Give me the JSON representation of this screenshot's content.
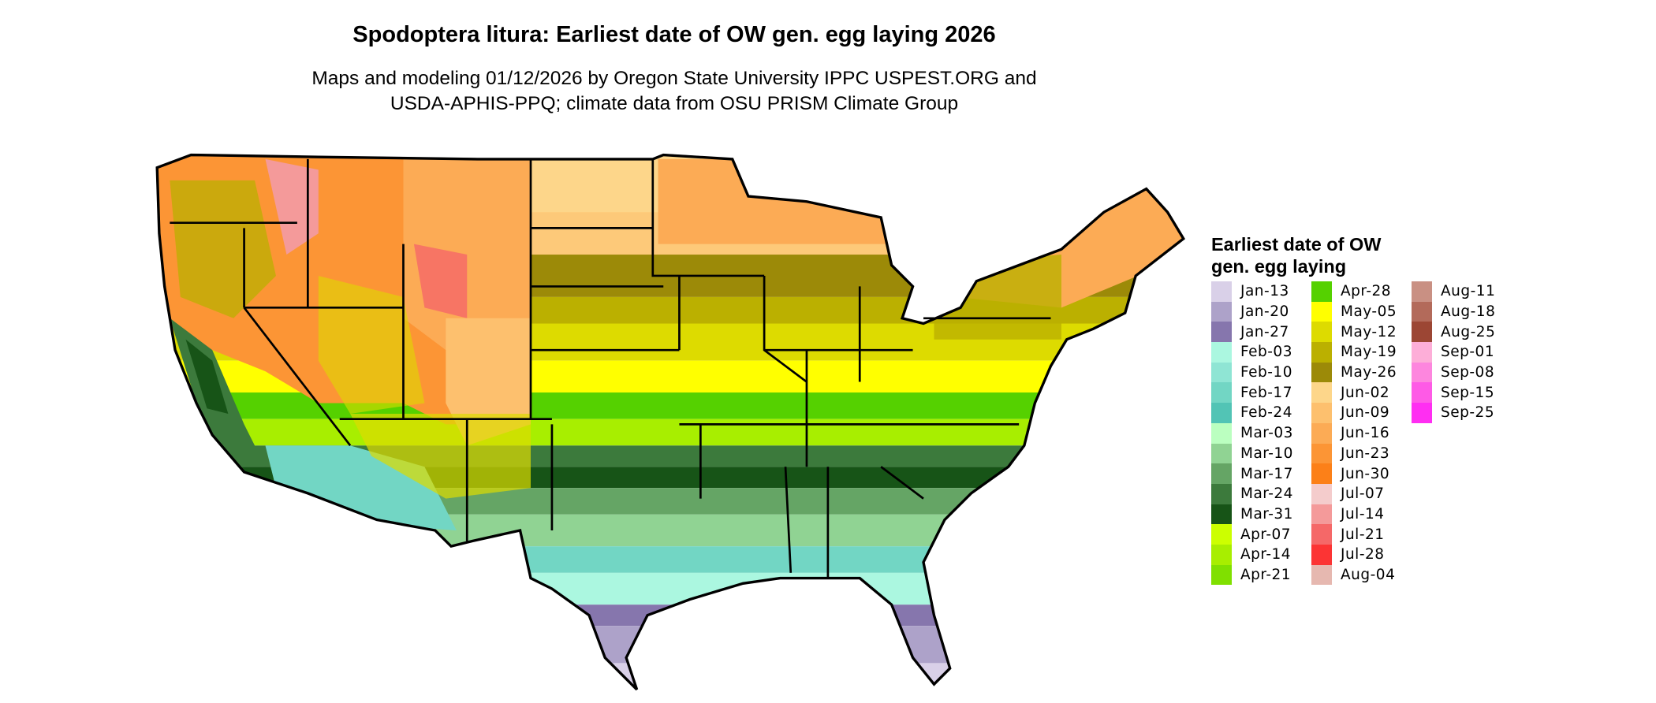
{
  "title": "Spodoptera litura: Earliest date of OW gen. egg laying 2026",
  "subtitle_lines": [
    "Maps and modeling 01/12/2026 by Oregon State University IPPC USPEST.ORG and",
    "USDA-APHIS-PPQ; climate data from OSU PRISM Climate Group"
  ],
  "legend": {
    "title": "Earliest date of OW gen. egg laying",
    "columns": [
      [
        {
          "label": "Jan-13",
          "color": "#d9d0e8"
        },
        {
          "label": "Jan-20",
          "color": "#ada2c9"
        },
        {
          "label": "Jan-27",
          "color": "#8676ad"
        },
        {
          "label": "Feb-03",
          "color": "#abf7e0"
        },
        {
          "label": "Feb-10",
          "color": "#8fe5d4"
        },
        {
          "label": "Feb-17",
          "color": "#72d6c4"
        },
        {
          "label": "Feb-24",
          "color": "#52c4b5"
        },
        {
          "label": "Mar-03",
          "color": "#bbffc0"
        },
        {
          "label": "Mar-10",
          "color": "#90d393"
        },
        {
          "label": "Mar-17",
          "color": "#65a565"
        },
        {
          "label": "Mar-24",
          "color": "#3c7a3c"
        },
        {
          "label": "Mar-31",
          "color": "#175417"
        },
        {
          "label": "Apr-07",
          "color": "#ccff00"
        },
        {
          "label": "Apr-14",
          "color": "#a8ee00"
        },
        {
          "label": "Apr-21",
          "color": "#80e000"
        }
      ],
      [
        {
          "label": "Apr-28",
          "color": "#55d100"
        },
        {
          "label": "May-05",
          "color": "#ffff00"
        },
        {
          "label": "May-12",
          "color": "#dddb00"
        },
        {
          "label": "May-19",
          "color": "#bbb000"
        },
        {
          "label": "May-26",
          "color": "#9c8a08"
        },
        {
          "label": "Jun-02",
          "color": "#fdd68a"
        },
        {
          "label": "Jun-09",
          "color": "#fdc06e"
        },
        {
          "label": "Jun-16",
          "color": "#fcab55"
        },
        {
          "label": "Jun-23",
          "color": "#fc9535"
        },
        {
          "label": "Jun-30",
          "color": "#fc8018"
        },
        {
          "label": "Jul-07",
          "color": "#f4cccc"
        },
        {
          "label": "Jul-14",
          "color": "#f49a9a"
        },
        {
          "label": "Jul-21",
          "color": "#f56868"
        },
        {
          "label": "Jul-28",
          "color": "#fc3434"
        },
        {
          "label": "Aug-04",
          "color": "#e6b8b0"
        }
      ],
      [
        {
          "label": "Aug-11",
          "color": "#c99083"
        },
        {
          "label": "Aug-18",
          "color": "#b36a5a"
        },
        {
          "label": "Aug-25",
          "color": "#9c4634"
        },
        {
          "label": "Sep-01",
          "color": "#fdaed8"
        },
        {
          "label": "Sep-08",
          "color": "#fd86de"
        },
        {
          "label": "Sep-15",
          "color": "#fe5ae6"
        },
        {
          "label": "Sep-25",
          "color": "#ff2ef2"
        }
      ]
    ]
  }
}
